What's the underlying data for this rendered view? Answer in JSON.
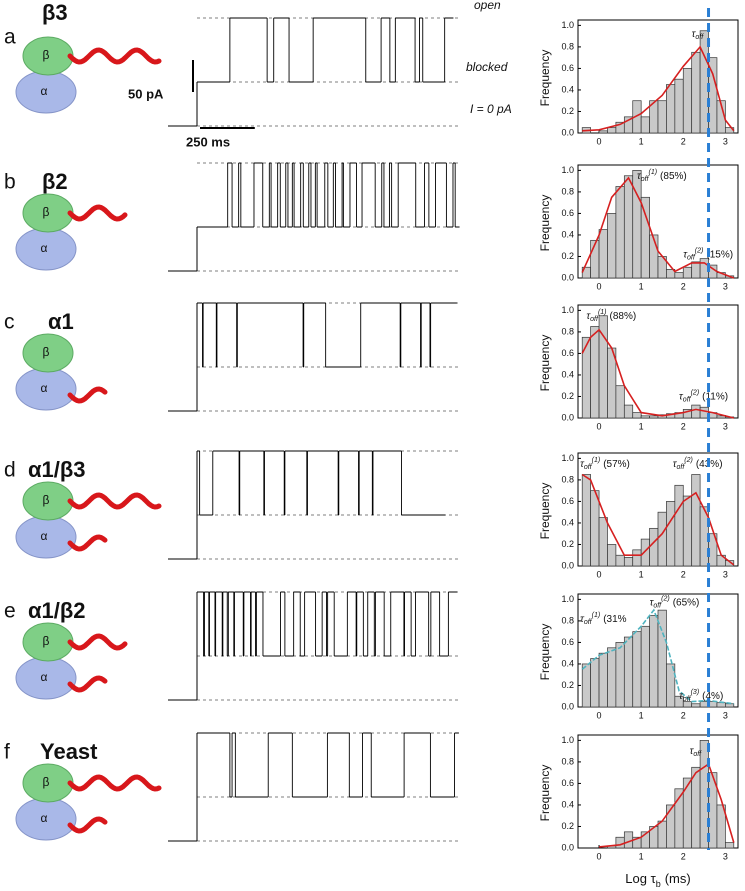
{
  "subunit_labels": [
    "β",
    "α"
  ],
  "level_labels": {
    "open": "open",
    "blocked": "blocked",
    "zero": "I = 0 pA"
  },
  "scale_bars": {
    "current": "50 pA",
    "time": "250 ms"
  },
  "y_label": "Frequency",
  "x_label": {
    "text": "Log τ",
    "sub": "b",
    "unit": "(ms)"
  },
  "dashed_line_x": 2.6,
  "dashed_line_color": "#2a7fd4",
  "histogram_bins": [
    -0.4,
    -0.2,
    0,
    0.2,
    0.4,
    0.6,
    0.8,
    1.0,
    1.2,
    1.4,
    1.6,
    1.8,
    2.0,
    2.2,
    2.4,
    2.6,
    2.8,
    3.0,
    3.2
  ],
  "histogram_axes": {
    "xlim": [
      -0.5,
      3.3
    ],
    "ylim": [
      0,
      1.05
    ],
    "xticks": [
      0,
      1,
      2,
      3
    ],
    "yticks": [
      {
        "value": 0,
        "label": "0.0"
      },
      0.2,
      0.4,
      0.6,
      0.8,
      {
        "value": 1,
        "label": "1.0"
      }
    ]
  },
  "panels": [
    {
      "letter": "a",
      "name": "β3",
      "starts_open": false,
      "trace_segments": [
        150,
        170,
        30,
        70,
        110,
        240,
        70,
        40,
        25,
        90,
        20,
        15,
        100,
        40
      ],
      "counts": [
        0.05,
        0,
        0.02,
        0.05,
        0.1,
        0.15,
        0.3,
        0.15,
        0.3,
        0.3,
        0.45,
        0.5,
        0.6,
        0.75,
        0.95,
        0.7,
        0.3,
        0.05
      ],
      "fit": {
        "color": "#d62020",
        "x": [
          -0.4,
          0,
          0.5,
          1,
          1.5,
          2,
          2.4,
          2.7,
          3.0,
          3.2
        ],
        "values": [
          0.02,
          0.03,
          0.08,
          0.18,
          0.35,
          0.62,
          0.8,
          0.55,
          0.12,
          0.02
        ]
      },
      "annotations": [
        {
          "symbol": "τ",
          "sub": "off"
        }
      ]
    },
    {
      "letter": "b",
      "name": "β2",
      "starts_open": false,
      "trace_segments": [
        140,
        20,
        30,
        10,
        60,
        40,
        30,
        8,
        30,
        12,
        25,
        10,
        20,
        8,
        30,
        12,
        25,
        10,
        20,
        8,
        35,
        14,
        25,
        10,
        30,
        6,
        30,
        30,
        25,
        60,
        30,
        10,
        25,
        10,
        30,
        80,
        40,
        20,
        30,
        50,
        30,
        10,
        20
      ],
      "counts": [
        0.1,
        0.35,
        0.45,
        0.6,
        0.85,
        0.95,
        1.0,
        0.75,
        0.4,
        0.2,
        0.08,
        0.05,
        0.1,
        0.15,
        0.18,
        0.12,
        0.05,
        0.02
      ],
      "fit": {
        "color": "#d62020",
        "x": [
          -0.4,
          0,
          0.3,
          0.7,
          1.0,
          1.4,
          1.8,
          2.2,
          2.5,
          2.8,
          3.2
        ],
        "values": [
          0.05,
          0.4,
          0.75,
          0.93,
          0.7,
          0.25,
          0.06,
          0.14,
          0.14,
          0.06,
          0
        ]
      },
      "annotations": [
        {
          "symbol": "τ",
          "sub": "off",
          "sup": "(1)",
          "note": "(85%)"
        },
        {
          "symbol": "τ",
          "sub": "off",
          "sup": "(2)",
          "note": "(15%)"
        }
      ]
    },
    {
      "letter": "c",
      "name": "α1",
      "starts_open": true,
      "trace_segments": [
        25,
        3,
        60,
        3,
        90,
        3,
        300,
        3,
        100,
        160,
        180,
        3,
        90,
        3,
        40,
        3,
        120
      ],
      "counts": [
        0.75,
        0.85,
        0.95,
        0.65,
        0.3,
        0.12,
        0.05,
        0.02,
        0.02,
        0.03,
        0.04,
        0.05,
        0.08,
        0.12,
        0.1,
        0.05,
        0.02,
        0.01
      ],
      "fit": {
        "color": "#d62020",
        "x": [
          -0.4,
          -0.2,
          0,
          0.3,
          0.6,
          1.0,
          1.5,
          2.0,
          2.3,
          2.7,
          3.2
        ],
        "values": [
          0.6,
          0.75,
          0.82,
          0.65,
          0.3,
          0.05,
          0.02,
          0.05,
          0.08,
          0.05,
          0
        ]
      },
      "annotations": [
        {
          "symbol": "τ",
          "sub": "off",
          "sup": "(1)",
          "note": "(88%)"
        },
        {
          "symbol": "τ",
          "sub": "off",
          "sup": "(2)",
          "note": "(11%)"
        }
      ]
    },
    {
      "letter": "d",
      "name": "α1/β3",
      "starts_open": true,
      "trace_segments": [
        12,
        60,
        120,
        3,
        110,
        3,
        90,
        3,
        100,
        3,
        140,
        3,
        90,
        3,
        60,
        3,
        130,
        200
      ],
      "counts": [
        0.85,
        0.7,
        0.45,
        0.2,
        0.1,
        0.08,
        0.15,
        0.25,
        0.35,
        0.5,
        0.6,
        0.75,
        0.65,
        0.85,
        0.55,
        0.3,
        0.1,
        0.05
      ],
      "fit": {
        "color": "#d62020",
        "x": [
          -0.4,
          -0.2,
          0.2,
          0.6,
          1.0,
          1.5,
          2.0,
          2.3,
          2.6,
          2.9,
          3.2
        ],
        "values": [
          0.85,
          0.8,
          0.4,
          0.1,
          0.1,
          0.3,
          0.6,
          0.68,
          0.45,
          0.1,
          0.01
        ]
      },
      "annotations": [
        {
          "symbol": "τ",
          "sub": "off",
          "sup": "(1)",
          "note": "(57%)"
        },
        {
          "symbol": "τ",
          "sub": "off",
          "sup": "(2)",
          "note": "(43%)"
        }
      ]
    },
    {
      "letter": "e",
      "name": "α1/β2",
      "starts_open": true,
      "trace_segments": [
        30,
        4,
        20,
        3,
        25,
        3,
        30,
        3,
        20,
        5,
        25,
        3,
        40,
        3,
        30,
        3,
        20,
        4,
        30,
        80,
        20,
        40,
        30,
        20,
        50,
        30,
        20,
        5,
        30,
        60,
        40,
        3,
        30,
        20,
        30,
        5,
        40,
        30,
        60,
        3,
        30,
        20,
        60,
        10,
        40,
        40,
        40
      ],
      "counts": [
        0.4,
        0.45,
        0.5,
        0.55,
        0.6,
        0.65,
        0.7,
        0.75,
        0.85,
        0.9,
        0.4,
        0.1,
        0.05,
        0.03,
        0.05,
        0.05,
        0.04,
        0.03
      ],
      "fit": {
        "color": "#4fb3bf",
        "x": [
          -0.4,
          0,
          0.5,
          1.0,
          1.3,
          1.6,
          1.9,
          2.2,
          2.6,
          3.2
        ],
        "values": [
          0.35,
          0.48,
          0.55,
          0.75,
          0.9,
          0.6,
          0.15,
          0.05,
          0.06,
          0.03
        ]
      },
      "annotations": [
        {
          "symbol": "τ",
          "sub": "off",
          "sup": "(1)",
          "note": "(31%"
        },
        {
          "symbol": "τ",
          "sub": "off",
          "sup": "(2)",
          "note": "(65%)"
        },
        {
          "symbol": "τ",
          "sub": "off",
          "sup": "(3)",
          "note": "(4%)"
        }
      ]
    },
    {
      "letter": "f",
      "name": "Yeast",
      "starts_open": true,
      "trace_segments": [
        150,
        10,
        15,
        150,
        110,
        160,
        100,
        60,
        40,
        150,
        120,
        110,
        20
      ],
      "counts": [
        0,
        0,
        0,
        0.02,
        0.1,
        0.15,
        0.1,
        0.15,
        0.2,
        0.25,
        0.4,
        0.55,
        0.65,
        0.75,
        1.0,
        0.7,
        0.4,
        0.05
      ],
      "fit": {
        "color": "#d62020",
        "x": [
          0,
          0.5,
          1,
          1.5,
          2,
          2.3,
          2.6,
          2.9,
          3.2
        ],
        "values": [
          0.01,
          0.03,
          0.1,
          0.25,
          0.52,
          0.7,
          0.78,
          0.45,
          0.05
        ]
      },
      "annotations": [
        {
          "symbol": "τ",
          "sub": "off"
        }
      ]
    }
  ]
}
